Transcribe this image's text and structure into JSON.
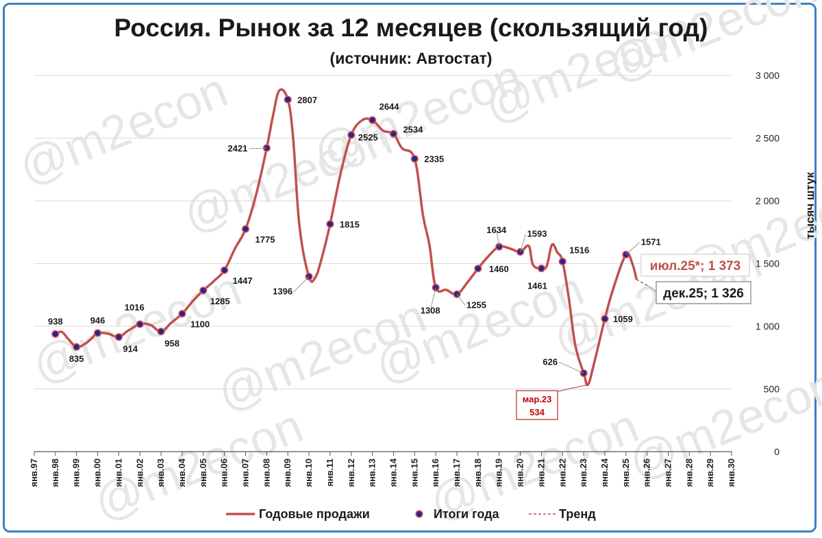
{
  "title": "Россия. Рынок за 12 месяцев (скользящий год)",
  "subtitle": "(источник: Автостат)",
  "watermark": "@m2econ",
  "colors": {
    "line": "#c0504d",
    "marker_fill": "#1f2a8c",
    "border": "#3d7fc7",
    "grid": "#d9d9d9"
  },
  "chart_data": {
    "type": "line",
    "ylabel": "тысяч штук",
    "ylim": [
      0,
      3000
    ],
    "yticks": [
      "0",
      "500",
      "1 000",
      "1 500",
      "2 000",
      "2 500",
      "3 000"
    ],
    "x_categories": [
      "янв.97",
      "янв.98",
      "янв.99",
      "янв.00",
      "янв.01",
      "янв.02",
      "янв.03",
      "янв.04",
      "янв.05",
      "янв.06",
      "янв.07",
      "янв.08",
      "янв.09",
      "янв.10",
      "янв.11",
      "янв.12",
      "янв.13",
      "янв.14",
      "янв.15",
      "янв.16",
      "янв.17",
      "янв.18",
      "янв.19",
      "янв.20",
      "янв.21",
      "янв.22",
      "янв.23",
      "янв.24",
      "янв.25",
      "янв.26",
      "янв.27",
      "янв.28",
      "янв.29",
      "янв.30"
    ],
    "series": [
      {
        "name": "Годовые продажи",
        "points": [
          [
            1998.0,
            938
          ],
          [
            1998.3,
            955
          ],
          [
            1998.6,
            900
          ],
          [
            1999.0,
            835
          ],
          [
            1999.4,
            860
          ],
          [
            1999.7,
            900
          ],
          [
            2000.0,
            946
          ],
          [
            2000.5,
            940
          ],
          [
            2001.0,
            914
          ],
          [
            2001.4,
            960
          ],
          [
            2002.0,
            1016
          ],
          [
            2002.5,
            1010
          ],
          [
            2003.0,
            958
          ],
          [
            2003.5,
            1030
          ],
          [
            2004.0,
            1100
          ],
          [
            2004.5,
            1200
          ],
          [
            2005.0,
            1285
          ],
          [
            2005.5,
            1360
          ],
          [
            2006.0,
            1447
          ],
          [
            2006.5,
            1620
          ],
          [
            2007.0,
            1775
          ],
          [
            2007.5,
            2050
          ],
          [
            2008.0,
            2421
          ],
          [
            2008.3,
            2680
          ],
          [
            2008.6,
            2880
          ],
          [
            2009.0,
            2807
          ],
          [
            2009.25,
            2500
          ],
          [
            2009.55,
            1800
          ],
          [
            2010.0,
            1396
          ],
          [
            2010.3,
            1390
          ],
          [
            2010.6,
            1540
          ],
          [
            2011.0,
            1815
          ],
          [
            2011.5,
            2220
          ],
          [
            2012.0,
            2525
          ],
          [
            2012.5,
            2640
          ],
          [
            2013.0,
            2644
          ],
          [
            2013.5,
            2560
          ],
          [
            2014.0,
            2534
          ],
          [
            2014.4,
            2420
          ],
          [
            2015.0,
            2335
          ],
          [
            2015.4,
            1880
          ],
          [
            2015.7,
            1650
          ],
          [
            2016.0,
            1308
          ],
          [
            2016.5,
            1290
          ],
          [
            2017.0,
            1255
          ],
          [
            2017.5,
            1350
          ],
          [
            2018.0,
            1460
          ],
          [
            2018.5,
            1560
          ],
          [
            2019.0,
            1634
          ],
          [
            2019.5,
            1620
          ],
          [
            2020.0,
            1593
          ],
          [
            2020.4,
            1640
          ],
          [
            2020.6,
            1490
          ],
          [
            2021.0,
            1461
          ],
          [
            2021.25,
            1480
          ],
          [
            2021.5,
            1650
          ],
          [
            2021.75,
            1590
          ],
          [
            2022.0,
            1516
          ],
          [
            2022.3,
            1220
          ],
          [
            2022.6,
            850
          ],
          [
            2023.0,
            626
          ],
          [
            2023.2,
            534
          ],
          [
            2023.5,
            710
          ],
          [
            2024.0,
            1059
          ],
          [
            2024.4,
            1300
          ],
          [
            2025.0,
            1571
          ],
          [
            2025.3,
            1500
          ],
          [
            2025.5,
            1373
          ]
        ]
      },
      {
        "name": "Итоги года",
        "points": [
          [
            1998,
            938
          ],
          [
            1999,
            835
          ],
          [
            2000,
            946
          ],
          [
            2001,
            914
          ],
          [
            2002,
            1016
          ],
          [
            2003,
            958
          ],
          [
            2004,
            1100
          ],
          [
            2005,
            1285
          ],
          [
            2006,
            1447
          ],
          [
            2007,
            1775
          ],
          [
            2008,
            2421
          ],
          [
            2009,
            2807
          ],
          [
            2010,
            1396
          ],
          [
            2011,
            1815
          ],
          [
            2012,
            2525
          ],
          [
            2013,
            2644
          ],
          [
            2014,
            2534
          ],
          [
            2015,
            2335
          ],
          [
            2016,
            1308
          ],
          [
            2017,
            1255
          ],
          [
            2018,
            1460
          ],
          [
            2019,
            1634
          ],
          [
            2020,
            1593
          ],
          [
            2021,
            1461
          ],
          [
            2022,
            1516
          ],
          [
            2023,
            626
          ],
          [
            2024,
            1059
          ],
          [
            2025,
            1571
          ]
        ],
        "labels": [
          "938",
          "835",
          "946",
          "914",
          "1016",
          "958",
          "1100",
          "1285",
          "1447",
          "1775",
          "2421",
          "2807",
          "1396",
          "1815",
          "2525",
          "2644",
          "2534",
          "2335",
          "1308",
          "1255",
          "1460",
          "1634",
          "1593",
          "1461",
          "1516",
          "626",
          "1059",
          "1571"
        ]
      },
      {
        "name": "Тренд",
        "points": [
          [
            2025.5,
            1373
          ],
          [
            2026.0,
            1326
          ]
        ]
      }
    ],
    "callouts": [
      {
        "text": "мар.23",
        "value": "534"
      },
      {
        "text": "июл.25*; 1 373"
      },
      {
        "text": "дек.25; 1 326"
      }
    ],
    "legend_position": "bottom"
  }
}
